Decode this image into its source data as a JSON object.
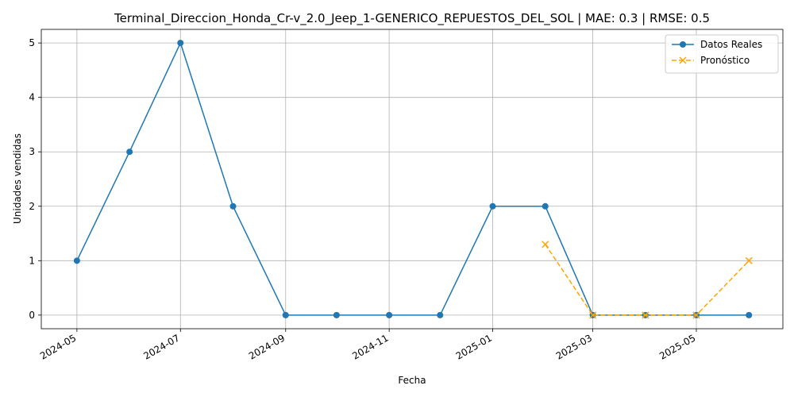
{
  "chart_data": {
    "type": "line",
    "title": "Terminal_Direccion_Honda_Cr-v_2.0_Jeep_1-GENERICO_REPUESTOS_DEL_SOL | MAE: 0.3 | RMSE: 0.5",
    "xlabel": "Fecha",
    "ylabel": "Unidades vendidas",
    "xlim": [
      "2024-04-10",
      "2025-06-21"
    ],
    "ylim": [
      -0.25,
      5.25
    ],
    "x_ticks": [
      "2024-05",
      "2024-07",
      "2024-09",
      "2024-11",
      "2025-01",
      "2025-03",
      "2025-05"
    ],
    "y_ticks": [
      0,
      1,
      2,
      3,
      4,
      5
    ],
    "grid": true,
    "legend_position": "top-right",
    "series": [
      {
        "name": "Datos Reales",
        "color": "#1f77b4",
        "marker": "circle",
        "linestyle": "solid",
        "x": [
          "2024-05-01",
          "2024-06-01",
          "2024-07-01",
          "2024-08-01",
          "2024-09-01",
          "2024-10-01",
          "2024-11-01",
          "2024-12-01",
          "2025-01-01",
          "2025-02-01",
          "2025-03-01",
          "2025-04-01",
          "2025-05-01",
          "2025-06-01"
        ],
        "values": [
          1,
          3,
          5,
          2,
          0,
          0,
          0,
          0,
          2,
          2,
          0,
          0,
          0,
          0
        ]
      },
      {
        "name": "Pronóstico",
        "color": "#ffa500",
        "marker": "x",
        "linestyle": "dashed",
        "x": [
          "2025-02-01",
          "2025-03-01",
          "2025-04-01",
          "2025-05-01",
          "2025-06-01"
        ],
        "values": [
          1.3,
          0,
          0,
          0,
          1
        ]
      }
    ]
  }
}
